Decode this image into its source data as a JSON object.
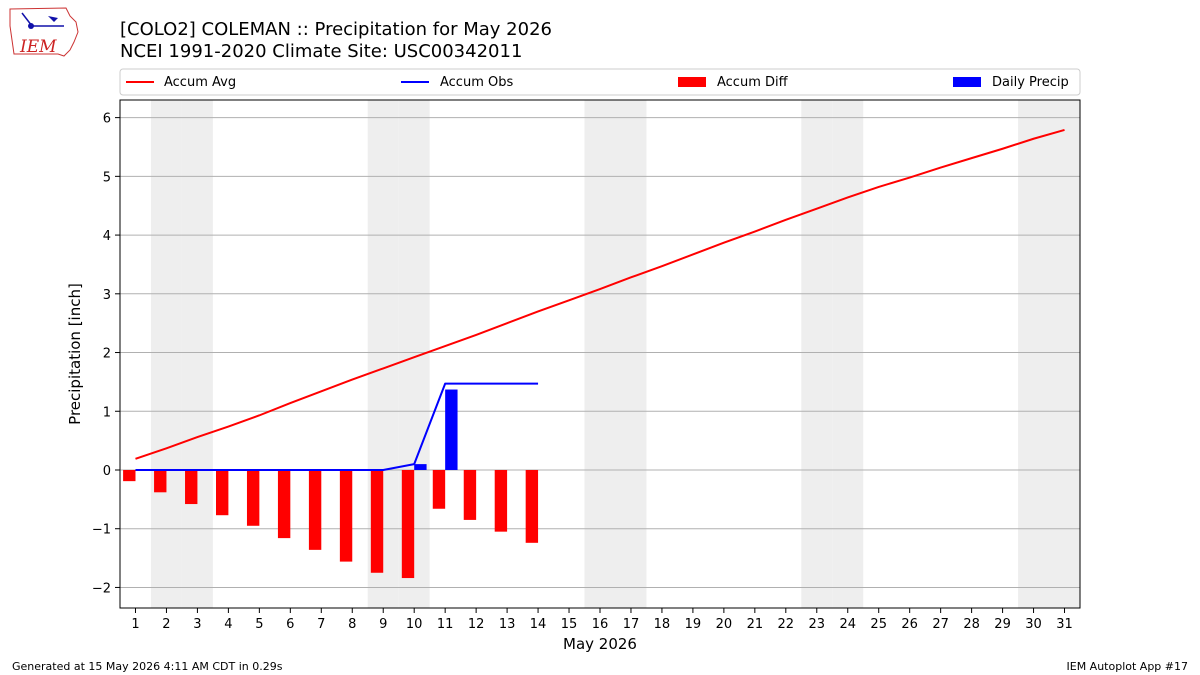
{
  "logo": {
    "text": "IEM"
  },
  "header": {
    "title_line1": "[COLO2] COLEMAN :: Precipitation for May 2026",
    "title_line2": "NCEI 1991-2020 Climate Site: USC00342011"
  },
  "footer": {
    "left": "Generated at 15 May 2026 4:11 AM CDT in 0.29s",
    "right": "IEM Autoplot App #17"
  },
  "colors": {
    "accum_avg": "#ff0000",
    "accum_obs": "#0000ff",
    "accum_diff": "#ff0000",
    "daily_precip": "#0000ff",
    "weekend_shade": "#eeeeee",
    "grid": "#b0b0b0"
  },
  "chart_data": {
    "type": "bar",
    "xlabel": "May 2026",
    "ylabel": "Precipitation [inch]",
    "xlim": [
      0.5,
      31.5
    ],
    "ylim": [
      -2.35,
      6.3
    ],
    "yticks": [
      -2,
      -1,
      0,
      1,
      2,
      3,
      4,
      5,
      6
    ],
    "ytick_labels": [
      "−2",
      "−1",
      "0",
      "1",
      "2",
      "3",
      "4",
      "5",
      "6"
    ],
    "grid": true,
    "legend_position": "top, outside plot",
    "x": [
      1,
      2,
      3,
      4,
      5,
      6,
      7,
      8,
      9,
      10,
      11,
      12,
      13,
      14,
      15,
      16,
      17,
      18,
      19,
      20,
      21,
      22,
      23,
      24,
      25,
      26,
      27,
      28,
      29,
      30,
      31
    ],
    "x_tick_labels": [
      "1",
      "2",
      "3",
      "4",
      "5",
      "6",
      "7",
      "8",
      "9",
      "10",
      "11",
      "12",
      "13",
      "14",
      "15",
      "16",
      "17",
      "18",
      "19",
      "20",
      "21",
      "22",
      "23",
      "24",
      "25",
      "26",
      "27",
      "28",
      "29",
      "30",
      "31"
    ],
    "weekend_days": [
      2,
      3,
      9,
      10,
      16,
      17,
      23,
      24,
      30,
      31
    ],
    "series": [
      {
        "name": "Accum Avg",
        "kind": "line",
        "x": [
          1,
          2,
          3,
          4,
          5,
          6,
          7,
          8,
          9,
          10,
          11,
          12,
          13,
          14,
          15,
          16,
          17,
          18,
          19,
          20,
          21,
          22,
          23,
          24,
          25,
          26,
          27,
          28,
          29,
          30,
          31
        ],
        "values": [
          0.19,
          0.37,
          0.56,
          0.74,
          0.93,
          1.14,
          1.34,
          1.54,
          1.73,
          1.92,
          2.11,
          2.3,
          2.5,
          2.7,
          2.89,
          3.08,
          3.28,
          3.47,
          3.67,
          3.87,
          4.06,
          4.26,
          4.45,
          4.64,
          4.82,
          4.98,
          5.15,
          5.31,
          5.47,
          5.64,
          5.79
        ]
      },
      {
        "name": "Accum Obs",
        "kind": "line",
        "x": [
          1,
          2,
          3,
          4,
          5,
          6,
          7,
          8,
          9,
          10,
          11,
          12,
          13,
          14
        ],
        "values": [
          0,
          0,
          0,
          0,
          0,
          0,
          0,
          0,
          0,
          0.1,
          1.47,
          1.47,
          1.47,
          1.47
        ]
      },
      {
        "name": "Accum Diff",
        "kind": "bar",
        "x": [
          1,
          2,
          3,
          4,
          5,
          6,
          7,
          8,
          9,
          10,
          11,
          12,
          13,
          14
        ],
        "values": [
          -0.19,
          -0.38,
          -0.58,
          -0.77,
          -0.95,
          -1.16,
          -1.36,
          -1.56,
          -1.75,
          -1.84,
          -0.66,
          -0.85,
          -1.05,
          -1.24
        ]
      },
      {
        "name": "Daily Precip",
        "kind": "bar",
        "x": [
          1,
          2,
          3,
          4,
          5,
          6,
          7,
          8,
          9,
          10,
          11,
          12,
          13,
          14
        ],
        "values": [
          0,
          0,
          0,
          0,
          0,
          0,
          0,
          0,
          0,
          0.1,
          1.37,
          0,
          0,
          0
        ]
      }
    ]
  }
}
